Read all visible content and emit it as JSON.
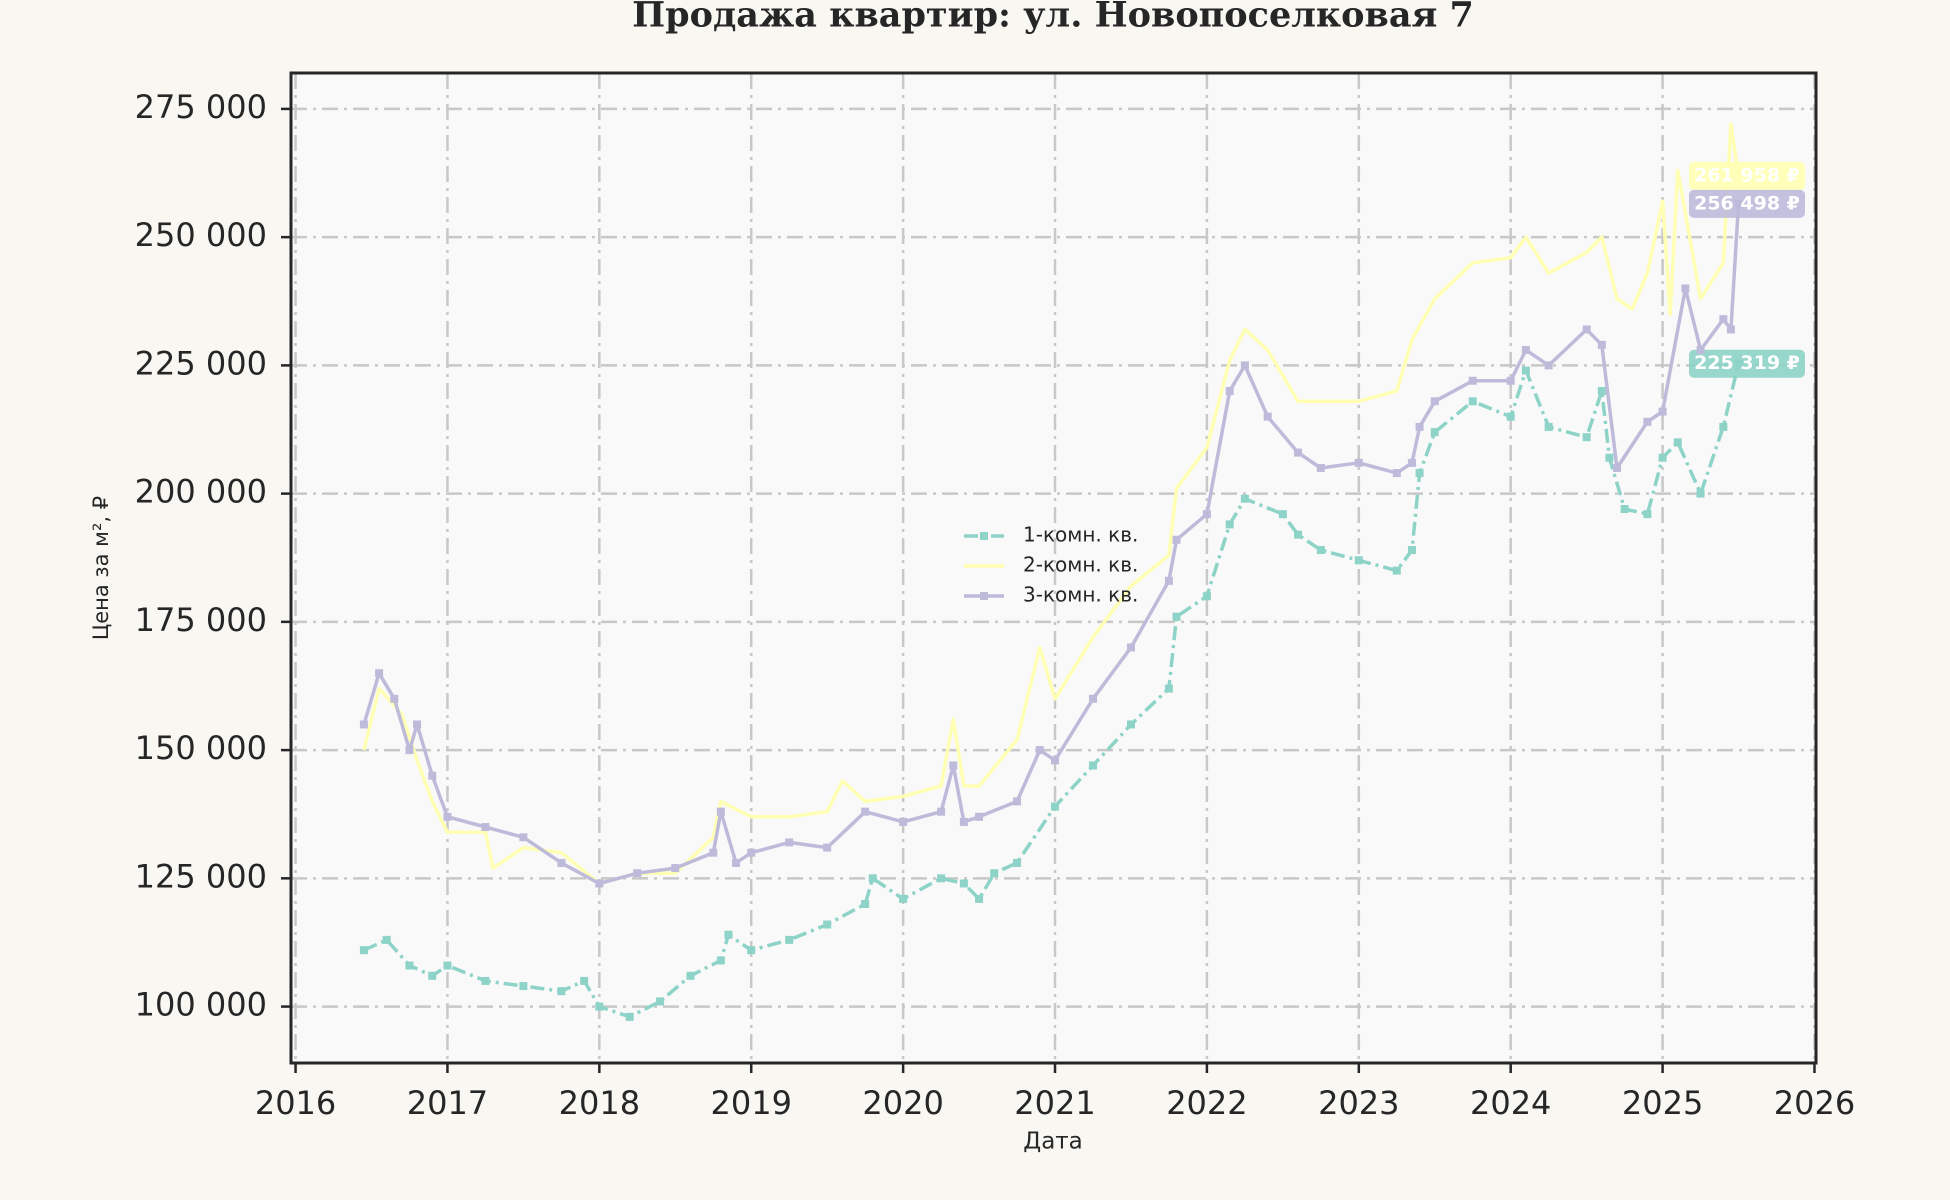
{
  "chart_data": {
    "type": "line",
    "title": "Продажа квартир: ул. Новопоселковая 7",
    "x_label": "Дата",
    "y_label": "Цена за м², ₽",
    "xlim": [
      2015.97,
      2026.01
    ],
    "xticks": [
      2016,
      2017,
      2018,
      2019,
      2020,
      2021,
      2022,
      2023,
      2024,
      2025,
      2026
    ],
    "ylim": [
      89000,
      282000
    ],
    "yticks": [
      {
        "value": 100000,
        "label": "100 000"
      },
      {
        "value": 125000,
        "label": "125 000"
      },
      {
        "value": 150000,
        "label": "150 000"
      },
      {
        "value": 175000,
        "label": "175 000"
      },
      {
        "value": 200000,
        "label": "200 000"
      },
      {
        "value": 225000,
        "label": "225 000"
      },
      {
        "value": 250000,
        "label": "250 000"
      },
      {
        "value": 275000,
        "label": "275 000"
      }
    ],
    "grid": true,
    "legend": "center",
    "series": [
      {
        "name": "1-комн. кв.",
        "color": "#8dd3c7",
        "linestyle": "dashdot",
        "marker": "square",
        "x": [
          2016.45,
          2016.6,
          2016.75,
          2016.9,
          2017.0,
          2017.25,
          2017.5,
          2017.75,
          2017.9,
          2018.0,
          2018.2,
          2018.4,
          2018.6,
          2018.8,
          2018.85,
          2019.0,
          2019.25,
          2019.5,
          2019.75,
          2019.8,
          2020.0,
          2020.25,
          2020.4,
          2020.5,
          2020.6,
          2020.75,
          2021.0,
          2021.25,
          2021.5,
          2021.75,
          2021.8,
          2022.0,
          2022.15,
          2022.25,
          2022.5,
          2022.6,
          2022.75,
          2023.0,
          2023.25,
          2023.35,
          2023.4,
          2023.5,
          2023.75,
          2024.0,
          2024.1,
          2024.25,
          2024.5,
          2024.6,
          2024.65,
          2024.75,
          2024.9,
          2025.0,
          2025.1,
          2025.25,
          2025.4,
          2025.5
        ],
        "values": [
          111000,
          113000,
          108000,
          106000,
          108000,
          105000,
          104000,
          103000,
          105000,
          100000,
          98000,
          101000,
          106000,
          109000,
          114000,
          111000,
          113000,
          116000,
          120000,
          125000,
          121000,
          125000,
          124000,
          121000,
          126000,
          128000,
          139000,
          147000,
          155000,
          162000,
          176000,
          180000,
          194000,
          199000,
          196000,
          192000,
          189000,
          187000,
          185000,
          189000,
          204000,
          212000,
          218000,
          215000,
          224000,
          213000,
          211000,
          220000,
          207000,
          197000,
          196000,
          207000,
          210000,
          200000,
          213000,
          225319
        ],
        "last_value_label": "225 319 ₽"
      },
      {
        "name": "2-комн. кв.",
        "color": "#ffffb3",
        "linestyle": "solid",
        "marker": null,
        "x": [
          2016.45,
          2016.55,
          2016.7,
          2016.8,
          2016.9,
          2017.0,
          2017.25,
          2017.3,
          2017.5,
          2017.75,
          2018.0,
          2018.25,
          2018.5,
          2018.75,
          2018.8,
          2019.0,
          2019.25,
          2019.5,
          2019.6,
          2019.75,
          2020.0,
          2020.25,
          2020.33,
          2020.4,
          2020.5,
          2020.75,
          2020.9,
          2021.0,
          2021.25,
          2021.5,
          2021.75,
          2021.8,
          2022.0,
          2022.15,
          2022.25,
          2022.4,
          2022.6,
          2022.75,
          2023.0,
          2023.25,
          2023.35,
          2023.5,
          2023.75,
          2024.0,
          2024.1,
          2024.25,
          2024.5,
          2024.6,
          2024.7,
          2024.8,
          2024.9,
          2025.0,
          2025.05,
          2025.1,
          2025.25,
          2025.4,
          2025.45,
          2025.5
        ],
        "values": [
          150000,
          162000,
          157000,
          148000,
          140000,
          134000,
          134000,
          127000,
          131000,
          130000,
          124000,
          126000,
          126000,
          133000,
          140000,
          137000,
          137000,
          138000,
          144000,
          140000,
          141000,
          143000,
          156000,
          143000,
          143000,
          152000,
          170000,
          160000,
          172000,
          182000,
          188000,
          201000,
          209000,
          226000,
          232000,
          228000,
          218000,
          218000,
          218000,
          220000,
          230000,
          238000,
          245000,
          246000,
          250000,
          243000,
          247000,
          250000,
          238000,
          236000,
          243000,
          257000,
          235000,
          263000,
          238000,
          245000,
          272000,
          261958
        ],
        "last_value_label": "261 958 ₽"
      },
      {
        "name": "3-комн. кв.",
        "color": "#bebada",
        "linestyle": "solid",
        "marker": "square",
        "x": [
          2016.45,
          2016.55,
          2016.65,
          2016.75,
          2016.8,
          2016.9,
          2017.0,
          2017.25,
          2017.5,
          2017.75,
          2018.0,
          2018.25,
          2018.5,
          2018.75,
          2018.8,
          2018.9,
          2019.0,
          2019.25,
          2019.5,
          2019.75,
          2020.0,
          2020.25,
          2020.33,
          2020.4,
          2020.5,
          2020.75,
          2020.9,
          2021.0,
          2021.25,
          2021.5,
          2021.75,
          2021.8,
          2022.0,
          2022.15,
          2022.25,
          2022.4,
          2022.6,
          2022.75,
          2023.0,
          2023.25,
          2023.35,
          2023.4,
          2023.5,
          2023.75,
          2024.0,
          2024.1,
          2024.25,
          2024.5,
          2024.6,
          2024.7,
          2024.9,
          2025.0,
          2025.15,
          2025.25,
          2025.4,
          2025.45,
          2025.5
        ],
        "values": [
          155000,
          165000,
          160000,
          150000,
          155000,
          145000,
          137000,
          135000,
          133000,
          128000,
          124000,
          126000,
          127000,
          130000,
          138000,
          128000,
          130000,
          132000,
          131000,
          138000,
          136000,
          138000,
          147000,
          136000,
          137000,
          140000,
          150000,
          148000,
          160000,
          170000,
          183000,
          191000,
          196000,
          220000,
          225000,
          215000,
          208000,
          205000,
          206000,
          204000,
          206000,
          213000,
          218000,
          222000,
          222000,
          228000,
          225000,
          232000,
          229000,
          205000,
          214000,
          216000,
          240000,
          228000,
          234000,
          232000,
          256498
        ],
        "last_value_label": "256 498 ₽"
      }
    ]
  }
}
